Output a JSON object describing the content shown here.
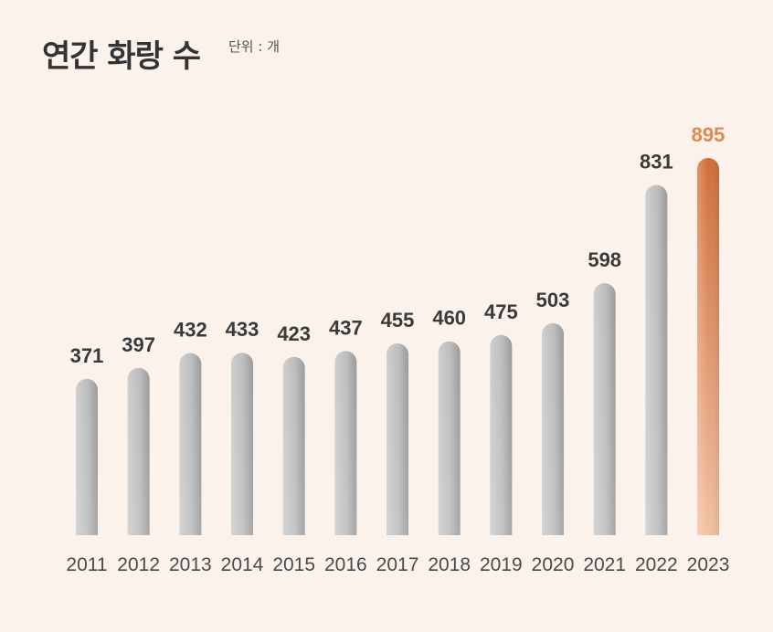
{
  "header": {
    "title": "연간 화랑 수",
    "unit": "단위 : 개"
  },
  "colors": {
    "background": "#fbf2ec",
    "bar_gray_light": "#c9c9c9",
    "bar_gray_dark": "#9c9c9c",
    "highlight_top": "#d06e3a",
    "highlight_bottom": "#f0b898",
    "highlight_label": "#e0884f"
  },
  "chart_data": {
    "type": "bar",
    "categories": [
      "2011",
      "2012",
      "2013",
      "2014",
      "2015",
      "2016",
      "2017",
      "2018",
      "2019",
      "2020",
      "2021",
      "2022",
      "2023"
    ],
    "values": [
      371,
      397,
      432,
      433,
      423,
      437,
      455,
      460,
      475,
      503,
      598,
      831,
      895
    ],
    "highlight_index": 12,
    "title": "연간 화랑 수",
    "subtitle": "단위 : 개",
    "ylim": [
      0,
      895
    ],
    "grid": false,
    "legend": "none"
  }
}
